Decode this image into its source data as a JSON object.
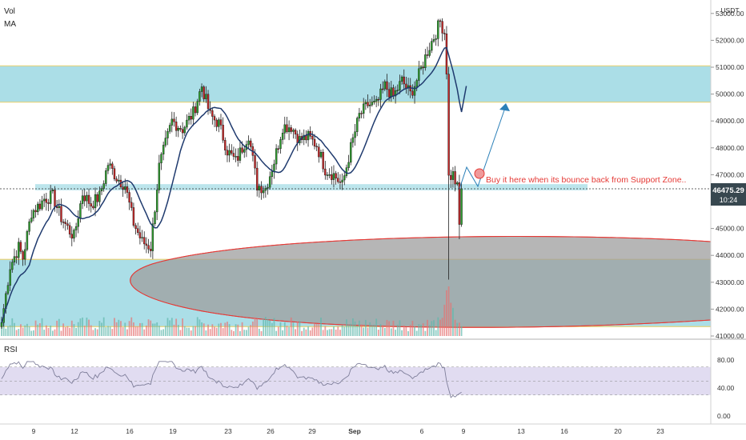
{
  "indicator_labels": {
    "vol": "Vol",
    "ma": "MA",
    "rsi": "RSI"
  },
  "currency": "USDT",
  "annotation": "Buy it here when its bounce back from Support Zone..",
  "colors": {
    "up": "#26a69a",
    "down": "#c62828",
    "up_body": "#2e9d2e",
    "ma": "#1f3a6e",
    "zone": "#8fd3df",
    "ellipse_stroke": "#e53935",
    "ellipse_fill": "#9e9e9e",
    "rsi_line": "#7e7e9a",
    "rsi_band": "#d9d3ee",
    "price_line": "#333333",
    "price_tag": "#37474f",
    "projection": "#2a7fb8"
  },
  "chart_data": {
    "type": "candlestick",
    "y_axis": {
      "ylim": [
        41000,
        53200
      ],
      "ticks": [
        41000,
        42000,
        43000,
        44000,
        45000,
        46000,
        47000,
        48000,
        49000,
        50000,
        51000,
        52000,
        53000
      ],
      "tick_labels": [
        "41000.00",
        "42000.00",
        "43000.00",
        "44000.00",
        "45000.00",
        "46000.00",
        "47000.00",
        "48000.00",
        "49000.00",
        "50000.00",
        "51000.00",
        "52000.00",
        "53000.00"
      ]
    },
    "x_axis": {
      "labels": [
        "9",
        "12",
        "16",
        "19",
        "23",
        "26",
        "29",
        "Sep",
        "6",
        "9",
        "13",
        "16",
        "20",
        "23"
      ]
    },
    "current_price": {
      "value": 46475.29,
      "label": "46475.29",
      "countdown": "10:24"
    },
    "zones": [
      {
        "name": "resistance",
        "from": 49700,
        "to": 51050
      },
      {
        "name": "support",
        "from": 41350,
        "to": 43850
      }
    ],
    "support_line": 43850,
    "rsi": {
      "ylim": [
        0,
        100
      ],
      "ticks": [
        80,
        40,
        0
      ],
      "tick_labels": [
        "80.00",
        "40.00",
        "0.00"
      ],
      "band": [
        30,
        70
      ],
      "mid": 50
    },
    "anchor_closes": [
      [
        0,
        41500
      ],
      [
        4,
        43600
      ],
      [
        8,
        44300
      ],
      [
        10,
        43900
      ],
      [
        14,
        45600
      ],
      [
        18,
        45900
      ],
      [
        20,
        46100
      ],
      [
        24,
        46200
      ],
      [
        28,
        45400
      ],
      [
        32,
        44900
      ],
      [
        34,
        44700
      ],
      [
        38,
        46300
      ],
      [
        42,
        45900
      ],
      [
        46,
        46200
      ],
      [
        50,
        47400
      ],
      [
        54,
        46900
      ],
      [
        58,
        46600
      ],
      [
        62,
        45200
      ],
      [
        66,
        44500
      ],
      [
        70,
        44300
      ],
      [
        74,
        47300
      ],
      [
        80,
        49000
      ],
      [
        85,
        48700
      ],
      [
        90,
        49300
      ],
      [
        94,
        50300
      ],
      [
        98,
        49200
      ],
      [
        102,
        48900
      ],
      [
        106,
        47900
      ],
      [
        110,
        47500
      ],
      [
        116,
        48500
      ],
      [
        120,
        46600
      ],
      [
        124,
        46500
      ],
      [
        128,
        47500
      ],
      [
        132,
        48800
      ],
      [
        136,
        48800
      ],
      [
        140,
        48300
      ],
      [
        144,
        48400
      ],
      [
        148,
        48100
      ],
      [
        152,
        47200
      ],
      [
        156,
        47000
      ],
      [
        160,
        46600
      ],
      [
        164,
        48000
      ],
      [
        168,
        49200
      ],
      [
        172,
        49600
      ],
      [
        176,
        49600
      ],
      [
        180,
        50300
      ],
      [
        184,
        49900
      ],
      [
        188,
        50500
      ],
      [
        192,
        50000
      ],
      [
        196,
        50700
      ],
      [
        200,
        51600
      ],
      [
        204,
        52300
      ],
      [
        206,
        52700
      ],
      [
        208,
        52300
      ],
      [
        209,
        50900
      ],
      [
        210,
        46900
      ],
      [
        212,
        47000
      ],
      [
        214,
        46500
      ],
      [
        215,
        45100
      ],
      [
        216,
        46480
      ]
    ]
  }
}
